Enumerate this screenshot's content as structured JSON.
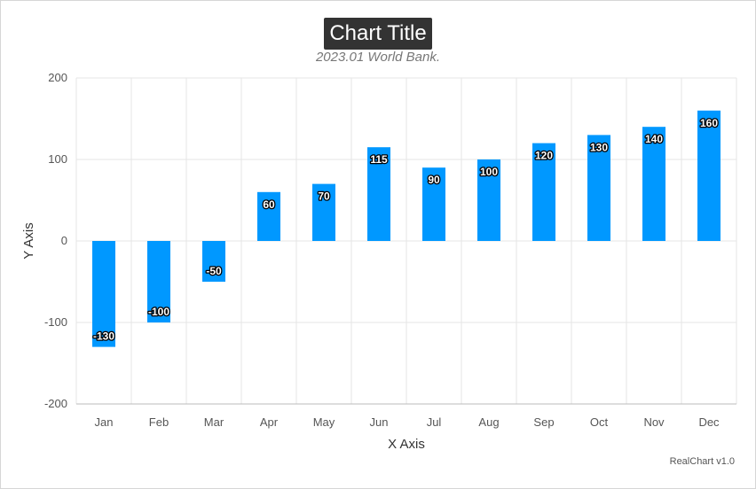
{
  "header": {
    "title": "Chart Title",
    "subtitle": "2023.01 World Bank.",
    "credit": "RealChart v1.0"
  },
  "colors": {
    "bar": "#0098ff",
    "grid": "#e5e5e5",
    "axis": "#bbbbbb"
  },
  "chart_data": {
    "type": "bar",
    "title": "Chart Title",
    "subtitle": "2023.01 World Bank.",
    "xlabel": "X Axis",
    "ylabel": "Y Axis",
    "categories": [
      "Jan",
      "Feb",
      "Mar",
      "Apr",
      "May",
      "Jun",
      "Jul",
      "Aug",
      "Sep",
      "Oct",
      "Nov",
      "Dec"
    ],
    "values": [
      -130,
      -100,
      -50,
      60,
      70,
      115,
      90,
      100,
      120,
      130,
      140,
      160
    ],
    "ylim": [
      -200,
      200
    ],
    "yticks": [
      200,
      100,
      0,
      -100,
      -200
    ],
    "grid": true,
    "legend": "none",
    "data_labels": true
  }
}
